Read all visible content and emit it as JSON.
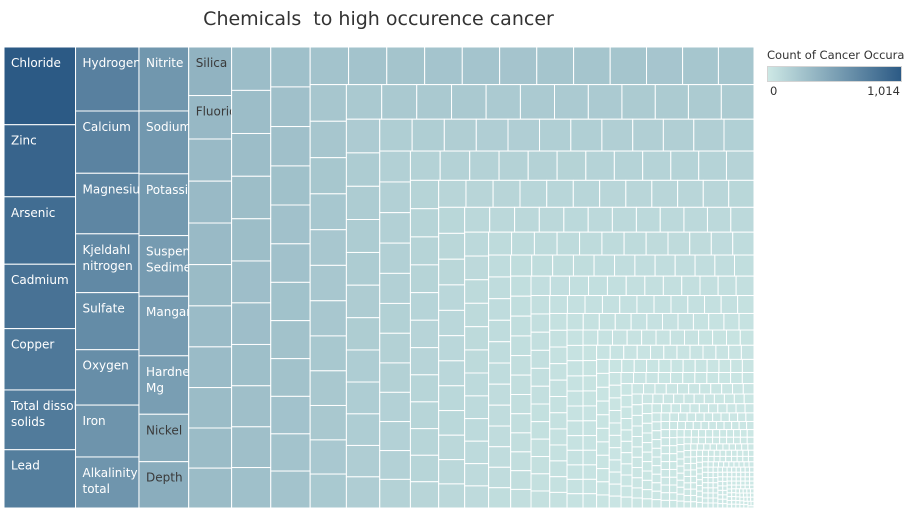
{
  "chart_data": {
    "type": "treemap",
    "title": "Chemicals  to high occurence cancer",
    "legend": {
      "title": "Count of Cancer Occura..",
      "min_label": "0",
      "max_label": "1,014",
      "min": 0,
      "max": 1014,
      "color_low": "#cde8e5",
      "color_high": "#2c5a85",
      "position": "top-right"
    },
    "labeled_cells": [
      {
        "label": "Chloride",
        "value": 1014
      },
      {
        "label": "Zinc",
        "value": 940
      },
      {
        "label": "Arsenic",
        "value": 880
      },
      {
        "label": "Cadmium",
        "value": 840
      },
      {
        "label": "Copper",
        "value": 800
      },
      {
        "label": "Total dissolved\nsolids",
        "value": 780
      },
      {
        "label": "Lead",
        "value": 760
      },
      {
        "label": "Hydrogen ion",
        "value": 740
      },
      {
        "label": "Calcium",
        "value": 720
      },
      {
        "label": "Magnesium",
        "value": 700
      },
      {
        "label": "Kjeldahl\nnitrogen",
        "value": 680
      },
      {
        "label": "Sulfate",
        "value": 660
      },
      {
        "label": "Oxygen",
        "value": 640
      },
      {
        "label": "Iron",
        "value": 600
      },
      {
        "label": "Alkalinity,\ntotal",
        "value": 590
      },
      {
        "label": "Nitrite",
        "value": 580
      },
      {
        "label": "Sodium",
        "value": 570
      },
      {
        "label": "Potassium",
        "value": 560
      },
      {
        "label": "Suspended\nSediment",
        "value": 550
      },
      {
        "label": "Manganese",
        "value": 540
      },
      {
        "label": "Hardness, Ca,\nMg",
        "value": 530
      },
      {
        "label": "Nickel",
        "value": 430
      },
      {
        "label": "Depth",
        "value": 420
      },
      {
        "label": "Silica",
        "value": 380
      },
      {
        "label": "Fluoride",
        "value": 340
      }
    ]
  }
}
